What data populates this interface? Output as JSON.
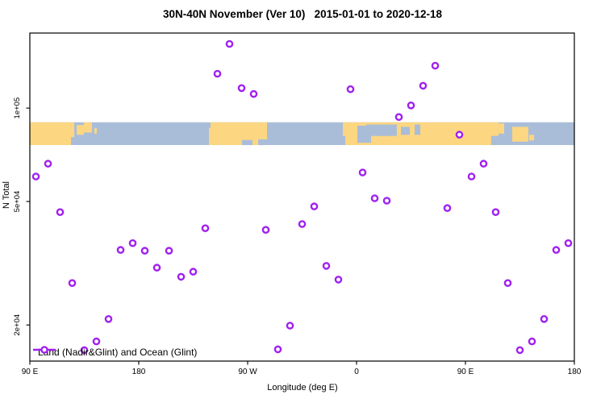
{
  "title": "30N-40N November (Ver 10)   2015-01-01 to 2020-12-18",
  "legend": {
    "label": "Land (Nadir&Glint) and Ocean (Glint)"
  },
  "colors": {
    "point": "#a020f0",
    "land": "#fcd681",
    "ocean": "#a9bdd9",
    "axis": "#000000"
  },
  "chart_data": {
    "type": "scatter",
    "title": "30N-40N November (Ver 10)   2015-01-01 to 2020-12-18",
    "xlabel": "Longitude (deg E)",
    "ylabel": "N Total",
    "y_scale": "log",
    "ylim": [
      15300,
      174500
    ],
    "y_ticks": [
      {
        "value": 100000,
        "label": "1e+05"
      },
      {
        "value": 50000,
        "label": "5e+04"
      },
      {
        "value": 20000,
        "label": "2e+04"
      }
    ],
    "x_plot_deg_range": [
      0,
      450
    ],
    "x_ticks": [
      {
        "pos": 0,
        "label": "90 E"
      },
      {
        "pos": 90,
        "label": "180"
      },
      {
        "pos": 180,
        "label": "90 W"
      },
      {
        "pos": 270,
        "label": "0"
      },
      {
        "pos": 360,
        "label": "90 E"
      },
      {
        "pos": 450,
        "label": "180"
      }
    ],
    "note": "x axis spans 450 deg starting at 90E; the 90E-180 segment (first 9 points) is repeated at the right end",
    "series": [
      {
        "name": "Land (Nadir&Glint) and Ocean (Glint)",
        "marker": "open-circle",
        "color": "#a020f0",
        "first_point_plot_deg": 5,
        "step_deg": 10,
        "point_count": 45,
        "lon_labels": [
          "95E",
          "105E",
          "115E",
          "125E",
          "135E",
          "145E",
          "155E",
          "165E",
          "175E",
          "175W",
          "165W",
          "155W",
          "145W",
          "135W",
          "125W",
          "115W",
          "105W",
          "95W",
          "85W",
          "75W",
          "65W",
          "55W",
          "45W",
          "35W",
          "25W",
          "15W",
          "5W",
          "5E",
          "15E",
          "25E",
          "35E",
          "45E",
          "55E",
          "65E",
          "75E",
          "85E"
        ],
        "values": [
          60200,
          66200,
          46200,
          27300,
          16600,
          17700,
          20900,
          34900,
          36700,
          34700,
          30600,
          34700,
          28600,
          29700,
          41000,
          129000,
          161000,
          116000,
          111000,
          40500,
          16700,
          19900,
          42300,
          48200,
          31000,
          28000,
          115000,
          62000,
          51200,
          50300,
          93600,
          102000,
          118000,
          137000,
          47600,
          82100
        ]
      }
    ],
    "map_band": {
      "value_top": 90000,
      "value_bottom": 76000,
      "ocean_color": "#a9bdd9",
      "land_color": "#fcd681",
      "land_segments_deg": [
        [
          0,
          34,
          0,
          1
        ],
        [
          34,
          36.7,
          0,
          0.65
        ],
        [
          38.7,
          44.7,
          0.12,
          0.55
        ],
        [
          44.7,
          51.3,
          0,
          0.45
        ],
        [
          53.3,
          55.3,
          0.25,
          0.5
        ],
        [
          148,
          149.3,
          0.25,
          1
        ],
        [
          149.3,
          188.7,
          0,
          1
        ],
        [
          188.7,
          196,
          0,
          0.75
        ],
        [
          258.7,
          260.7,
          0,
          0.6
        ],
        [
          260.7,
          387.3,
          0,
          1
        ],
        [
          387.3,
          392,
          0.05,
          0.5
        ],
        [
          398.7,
          412,
          0.2,
          0.85
        ],
        [
          412.7,
          416.7,
          0.55,
          0.8
        ]
      ],
      "ocean_patches_deg": [
        [
          175.3,
          184,
          0.78,
          1
        ],
        [
          270.7,
          282,
          0.15,
          0.9
        ],
        [
          278,
          303.3,
          0.1,
          0.6
        ],
        [
          306.7,
          314,
          0.2,
          0.55
        ],
        [
          318,
          322.7,
          0.1,
          0.55
        ],
        [
          381.3,
          387.3,
          0.6,
          1
        ]
      ]
    }
  }
}
